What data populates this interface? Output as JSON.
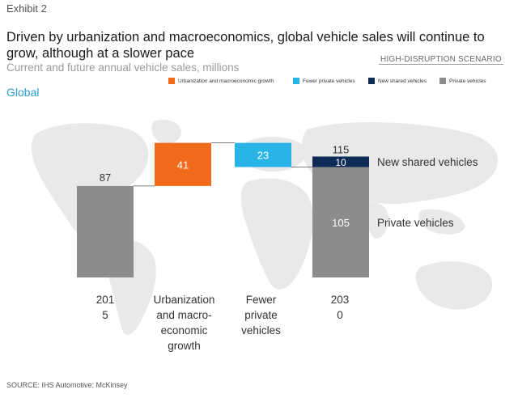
{
  "header": {
    "exhibit": "Exhibit 2",
    "title": "Driven by urbanization and macroeconomics, global vehicle sales will continue to grow, although at a slower pace",
    "subtitle": "Current and future annual vehicle sales, millions",
    "scenario": "HIGH-DISRUPTION SCENARIO",
    "region": "Global"
  },
  "legend": [
    {
      "label": "Urbanization and macroeconomic growth",
      "color": "#f26b1d"
    },
    {
      "label": "Fewer private vehicles",
      "color": "#28b4e6"
    },
    {
      "label": "New shared vehicles",
      "color": "#0c2b57"
    },
    {
      "label": "Private vehicles",
      "color": "#8c8c8c"
    }
  ],
  "chart_data": {
    "type": "waterfall",
    "unit": "millions",
    "title": "Current and future annual vehicle sales, millions",
    "categories": [
      {
        "label_lines": [
          "201",
          "5"
        ],
        "kind": "total",
        "value": 87,
        "color": "#8c8c8c"
      },
      {
        "label_lines": [
          "Urbanization",
          "and macro-",
          "economic",
          "growth"
        ],
        "kind": "increase",
        "value": 41,
        "color": "#f26b1d"
      },
      {
        "label_lines": [
          "Fewer",
          "private",
          "vehicles"
        ],
        "kind": "decrease",
        "value": 23,
        "color": "#28b4e6"
      },
      {
        "label_lines": [
          "203",
          "0"
        ],
        "kind": "stacked-total",
        "total": 115,
        "segments": [
          {
            "name": "Private vehicles",
            "value": 105,
            "color": "#8c8c8c"
          },
          {
            "name": "New shared vehicles",
            "value": 10,
            "color": "#0c2b57"
          }
        ]
      }
    ],
    "series_labels": {
      "shared": "New shared vehicles",
      "private": "Private vehicles"
    },
    "ylim": [
      0,
      130
    ]
  },
  "footer": {
    "source": "SOURCE: IHS Automotive; McKinsey"
  }
}
